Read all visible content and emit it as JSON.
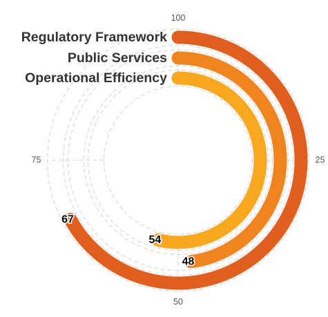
{
  "chart_data": {
    "type": "radial-bar",
    "axis": {
      "min": 0,
      "max": 100,
      "ticks": [
        25,
        50,
        75,
        100
      ]
    },
    "grid": true,
    "categories": [
      "Regulatory Framework",
      "Public Services",
      "Operational Efficiency"
    ],
    "values": [
      67,
      48,
      54
    ],
    "colors": [
      "#e05f1f",
      "#f0841f",
      "#f7a81f"
    ]
  }
}
